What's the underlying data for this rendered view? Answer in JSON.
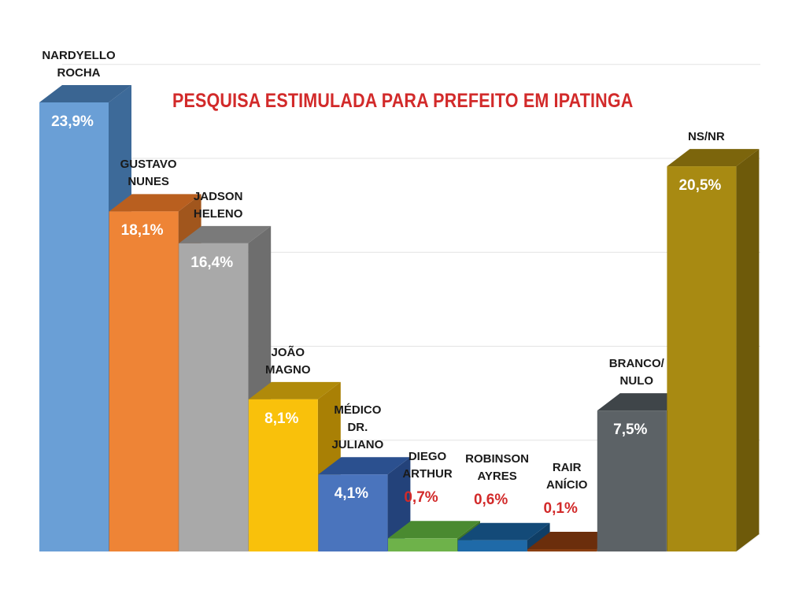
{
  "chart_data": {
    "type": "bar",
    "title": "PESQUISA ESTIMULADA PARA PREFEITO EM IPATINGA",
    "xlabel": "",
    "ylabel": "",
    "grid": true,
    "categories": [
      "NARDYELLO\nROCHA",
      "GUSTAVO\nNUNES",
      "JADSON\nHELENO",
      "JOÃO\nMAGNO",
      "MÉDICO\nDR.\nJULIANO",
      "DIEGO\nARTHUR",
      "ROBINSON\nAYRES",
      "RAIR\nANÍCIO",
      "BRANCO/\nNULO",
      "NS/NR"
    ],
    "values": [
      23.9,
      18.1,
      16.4,
      8.1,
      4.1,
      0.7,
      0.6,
      0.1,
      7.5,
      20.5
    ],
    "value_labels": [
      "23,9%",
      "18,1%",
      "16,4%",
      "8,1%",
      "4,1%",
      "0,7%",
      "0,6%",
      "0,1%",
      "7,5%",
      "20,5%"
    ],
    "colors": [
      {
        "front": "#6a9fd6",
        "side": "#3d6a99",
        "top": "#3a6592"
      },
      {
        "front": "#ee8436",
        "side": "#a1561d",
        "top": "#b95f1f"
      },
      {
        "front": "#a9a9a9",
        "side": "#6e6e6e",
        "top": "#7a7a7a"
      },
      {
        "front": "#f9c10b",
        "side": "#a98005",
        "top": "#b08a0a"
      },
      {
        "front": "#4a74bd",
        "side": "#23427a",
        "top": "#2b508f"
      },
      {
        "front": "#6eb24a",
        "side": "#3f7528",
        "top": "#4a8a30"
      },
      {
        "front": "#1f6aa8",
        "side": "#0f3e66",
        "top": "#134a78"
      },
      {
        "front": "#8a3f12",
        "side": "#5a260a",
        "top": "#6b2e0c"
      },
      {
        "front": "#5c6266",
        "side": "#33393d",
        "top": "#3f4549"
      },
      {
        "front": "#a88a12",
        "side": "#6e5a0a",
        "top": "#7c650c"
      }
    ]
  }
}
